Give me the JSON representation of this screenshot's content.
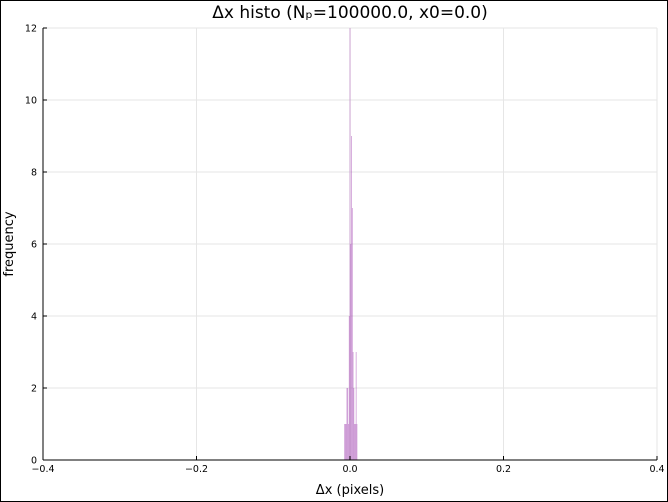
{
  "chart_data": {
    "type": "bar",
    "title": "Δx histo (Nₚ=100000.0, x0=0.0)",
    "xlabel": "Δx (pixels)",
    "ylabel": "frequency",
    "xlim": [
      -0.4,
      0.4
    ],
    "ylim": [
      0,
      12
    ],
    "x_ticks": [
      -0.4,
      -0.2,
      0.0,
      0.2,
      0.4
    ],
    "x_tick_labels": [
      "−0.4",
      "−0.2",
      "0.0",
      "0.2",
      "0.4"
    ],
    "y_ticks": [
      0,
      2,
      4,
      6,
      8,
      10,
      12
    ],
    "y_tick_labels": [
      "0",
      "2",
      "4",
      "6",
      "8",
      "10",
      "12"
    ],
    "grid": true,
    "legend": "none",
    "bar_color": "#a54bb4",
    "bin_width": 0.001,
    "bins": [
      {
        "x": -0.007,
        "count": 1
      },
      {
        "x": -0.006,
        "count": 1
      },
      {
        "x": -0.005,
        "count": 1
      },
      {
        "x": -0.004,
        "count": 2
      },
      {
        "x": -0.003,
        "count": 2
      },
      {
        "x": -0.002,
        "count": 1
      },
      {
        "x": -0.001,
        "count": 4
      },
      {
        "x": 0.0,
        "count": 12
      },
      {
        "x": 0.001,
        "count": 6
      },
      {
        "x": 0.002,
        "count": 9
      },
      {
        "x": 0.003,
        "count": 7
      },
      {
        "x": 0.004,
        "count": 3
      },
      {
        "x": 0.005,
        "count": 2
      },
      {
        "x": 0.006,
        "count": 1
      },
      {
        "x": 0.007,
        "count": 1
      },
      {
        "x": 0.008,
        "count": 3
      },
      {
        "x": 0.009,
        "count": 1
      }
    ]
  }
}
